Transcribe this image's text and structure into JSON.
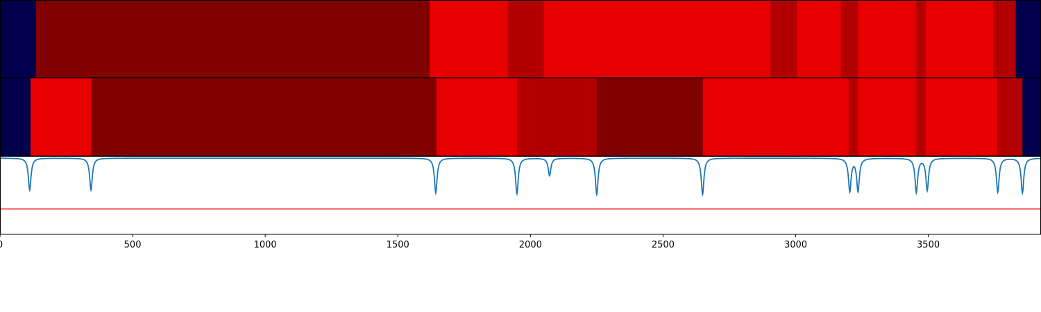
{
  "chart_data": [
    {
      "type": "heatmap",
      "colormap": "seismic",
      "xlim": [
        0,
        3925
      ],
      "segments": [
        {
          "start": 0,
          "end": 135,
          "value": 0.0
        },
        {
          "start": 135,
          "end": 1620,
          "value": 1.0
        },
        {
          "start": 1620,
          "end": 1915,
          "value": 0.8
        },
        {
          "start": 1915,
          "end": 2050,
          "value": 0.9
        },
        {
          "start": 2050,
          "end": 2905,
          "value": 0.8
        },
        {
          "start": 2905,
          "end": 3005,
          "value": 0.9
        },
        {
          "start": 3005,
          "end": 3170,
          "value": 0.8
        },
        {
          "start": 3170,
          "end": 3235,
          "value": 0.9
        },
        {
          "start": 3235,
          "end": 3455,
          "value": 0.8
        },
        {
          "start": 3455,
          "end": 3490,
          "value": 0.9
        },
        {
          "start": 3490,
          "end": 3745,
          "value": 0.8
        },
        {
          "start": 3745,
          "end": 3830,
          "value": 0.9
        },
        {
          "start": 3830,
          "end": 3925,
          "value": 0.0
        }
      ]
    },
    {
      "type": "heatmap",
      "colormap": "seismic",
      "xlim": [
        0,
        3925
      ],
      "segments": [
        {
          "start": 0,
          "end": 115,
          "value": 0.0
        },
        {
          "start": 115,
          "end": 345,
          "value": 0.8
        },
        {
          "start": 345,
          "end": 1645,
          "value": 1.0
        },
        {
          "start": 1645,
          "end": 1950,
          "value": 0.8
        },
        {
          "start": 1950,
          "end": 2250,
          "value": 0.9
        },
        {
          "start": 2250,
          "end": 2650,
          "value": 1.0
        },
        {
          "start": 2650,
          "end": 3200,
          "value": 0.8
        },
        {
          "start": 3200,
          "end": 3235,
          "value": 0.9
        },
        {
          "start": 3235,
          "end": 3455,
          "value": 0.8
        },
        {
          "start": 3455,
          "end": 3490,
          "value": 0.9
        },
        {
          "start": 3490,
          "end": 3760,
          "value": 0.8
        },
        {
          "start": 3760,
          "end": 3855,
          "value": 0.9
        },
        {
          "start": 3855,
          "end": 3925,
          "value": 0.0
        }
      ]
    },
    {
      "type": "line",
      "xlim": [
        0,
        3925
      ],
      "ylim": [
        -1.05,
        0.02
      ],
      "grid": false,
      "xticks": [
        0,
        500,
        1000,
        1500,
        2000,
        2500,
        3000,
        3500
      ],
      "xtick_labels": [
        "0",
        "500",
        "1000",
        "1500",
        "2000",
        "2500",
        "3000",
        "3500"
      ],
      "colors": {
        "signal": "#1f77b4",
        "threshold": "#ff0000"
      },
      "dips": [
        {
          "x": 112,
          "depth": 0.44
        },
        {
          "x": 343,
          "depth": 0.44
        },
        {
          "x": 1643,
          "depth": 0.48
        },
        {
          "x": 1949,
          "depth": 0.49
        },
        {
          "x": 2072,
          "depth": 0.24
        },
        {
          "x": 2250,
          "depth": 0.5
        },
        {
          "x": 2649,
          "depth": 0.5
        },
        {
          "x": 3204,
          "depth": 0.45
        },
        {
          "x": 3235,
          "depth": 0.45
        },
        {
          "x": 3455,
          "depth": 0.47
        },
        {
          "x": 3496,
          "depth": 0.44
        },
        {
          "x": 3762,
          "depth": 0.47
        },
        {
          "x": 3855,
          "depth": 0.48
        }
      ],
      "dip_width": 6,
      "threshold": -0.7
    }
  ]
}
